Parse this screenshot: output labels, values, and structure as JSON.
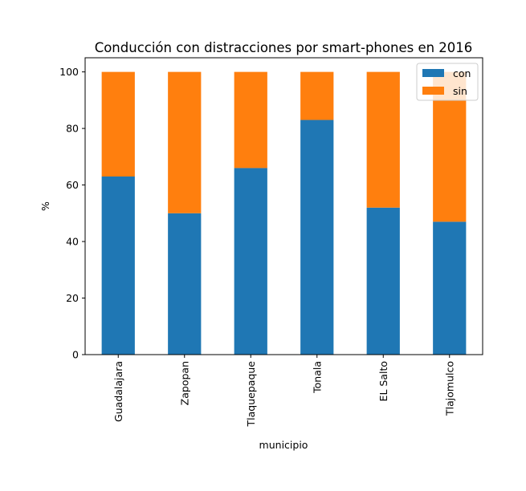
{
  "chart_data": {
    "type": "bar",
    "stacked": true,
    "title": "Conducción con distracciones por smart-phones en 2016",
    "xlabel": "municipio",
    "ylabel": "%",
    "categories": [
      "Guadalajara",
      "Zapopan",
      "Tlaquepaque",
      "Tonala",
      "EL Salto",
      "Tlajomulco"
    ],
    "series": [
      {
        "name": "con",
        "color": "#1f77b4",
        "values": [
          63,
          50,
          66,
          83,
          52,
          47
        ]
      },
      {
        "name": "sin",
        "color": "#ff7f0e",
        "values": [
          37,
          50,
          34,
          17,
          48,
          53
        ]
      }
    ],
    "ylim": [
      0,
      105
    ],
    "yticks": [
      0,
      20,
      40,
      60,
      80,
      100
    ],
    "grid": false,
    "legend_position": "top-right"
  }
}
